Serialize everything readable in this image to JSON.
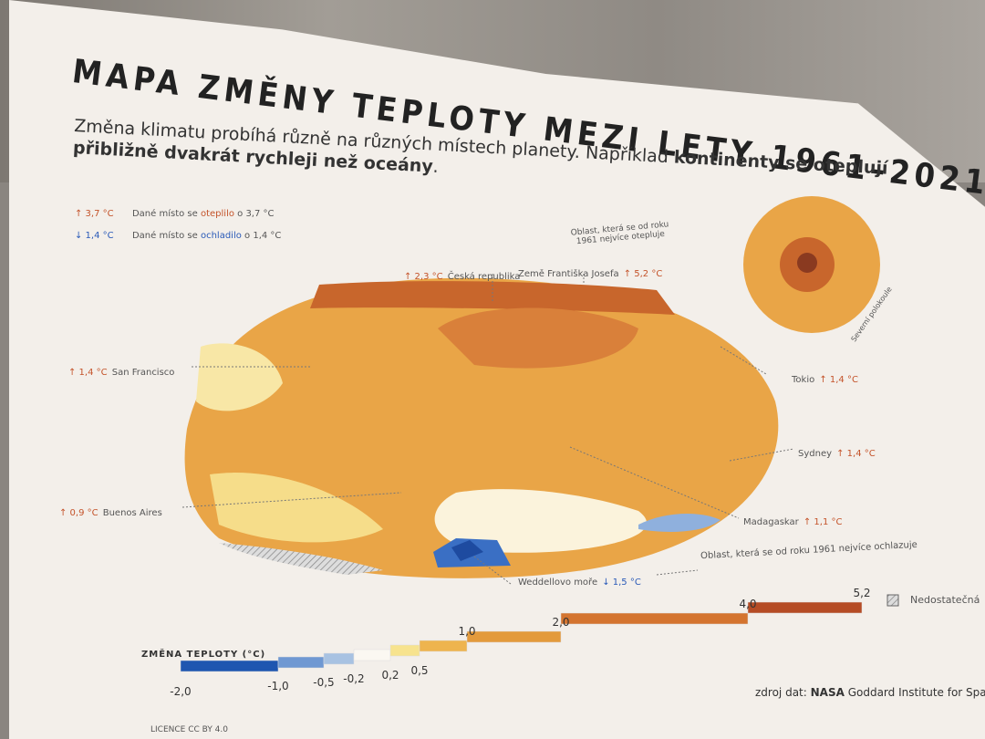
{
  "header": {
    "title": "MAPA ZMĚNY TEPLOTY MEZI LETY 1961–2021",
    "subtitle": {
      "text": "Změna klimatu probíhá různě na různých místech planety. Například ",
      "bold1": "kontinenty se oteplují",
      "bold2": "přibližně dvakrát rychleji než oceány",
      "end": "."
    }
  },
  "legend": {
    "warm": {
      "value": "↑ 3,7 °C",
      "prefix": "Dané místo se ",
      "word": "oteplilo",
      "suffix": " o 3,7 °C"
    },
    "cool": {
      "value": "↓ 1,4 °C",
      "prefix": "Dané místo se ",
      "word": "ochladilo",
      "suffix": " o 1,4 °C"
    }
  },
  "callouts": {
    "warmest_note": "Oblast, která se od roku 1961 nejvíce otepluje",
    "czech": {
      "value": "↑ 2,3 °C",
      "label": "Česká republika"
    },
    "franz_josef": {
      "label": "Země Františka Josefa",
      "value": "↑ 5,2 °C"
    },
    "san_francisco": {
      "value": "↑ 1,4 °C",
      "label": "San Francisco"
    },
    "tokyo": {
      "label": "Tokio",
      "value": "↑ 1,4 °C"
    },
    "sydney": {
      "label": "Sydney",
      "value": "↑ 1,4 °C"
    },
    "buenos_aires": {
      "value": "↑ 0,9 °C",
      "label": "Buenos Aires"
    },
    "madagascar": {
      "label": "Madagaskar",
      "value": "↑ 1,1 °C"
    },
    "coolest_note": "Oblast, která se od roku 1961 nejvíce ochlazuje",
    "weddell": {
      "label": "Weddellovo moře",
      "value": "↓ 1,5 °C"
    },
    "north": "Severní polokoule"
  },
  "scale": {
    "title": "ZMĚNA TEPLOTY (°C)",
    "labels": [
      "-2,0",
      "-1,0",
      "-0,5",
      "-0,2",
      "0,2",
      "0,5",
      "1,0",
      "2,0",
      "4,0",
      "5,2"
    ],
    "no_data": "Nedostatečná"
  },
  "footer": {
    "source_prefix": "zdroj dat: ",
    "source_org": "NASA",
    "source_rest": " Goddard Institute for Spac",
    "license": "LICENCE CC BY 4.0"
  }
}
